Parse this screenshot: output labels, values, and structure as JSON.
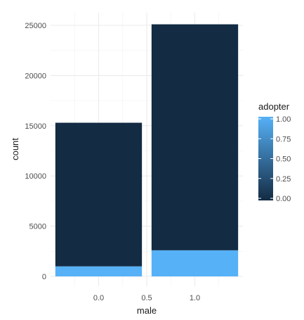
{
  "chart_data": {
    "type": "bar",
    "stacked": true,
    "title": "",
    "xlabel": "male",
    "ylabel": "count",
    "x_ticks": [
      "0.0",
      "0.5",
      "1.0"
    ],
    "y_ticks": [
      "0",
      "5000",
      "10000",
      "15000",
      "20000",
      "25000"
    ],
    "xlim": [
      -0.5,
      1.5
    ],
    "ylim": [
      0,
      26000
    ],
    "grid": true,
    "bars": [
      {
        "x": 0,
        "segments": [
          {
            "adopter": 1,
            "count": 1000
          },
          {
            "adopter": 0,
            "count": 14300
          }
        ]
      },
      {
        "x": 1,
        "segments": [
          {
            "adopter": 1,
            "count": 2600
          },
          {
            "adopter": 0,
            "count": 22500
          }
        ]
      }
    ],
    "legend": {
      "title": "adopter",
      "position": "right",
      "scale": "continuous",
      "labels": [
        "1.00",
        "0.75",
        "0.50",
        "0.25",
        "0.00"
      ],
      "colors": {
        "low": "#132B43",
        "high": "#56B1F7"
      }
    }
  }
}
